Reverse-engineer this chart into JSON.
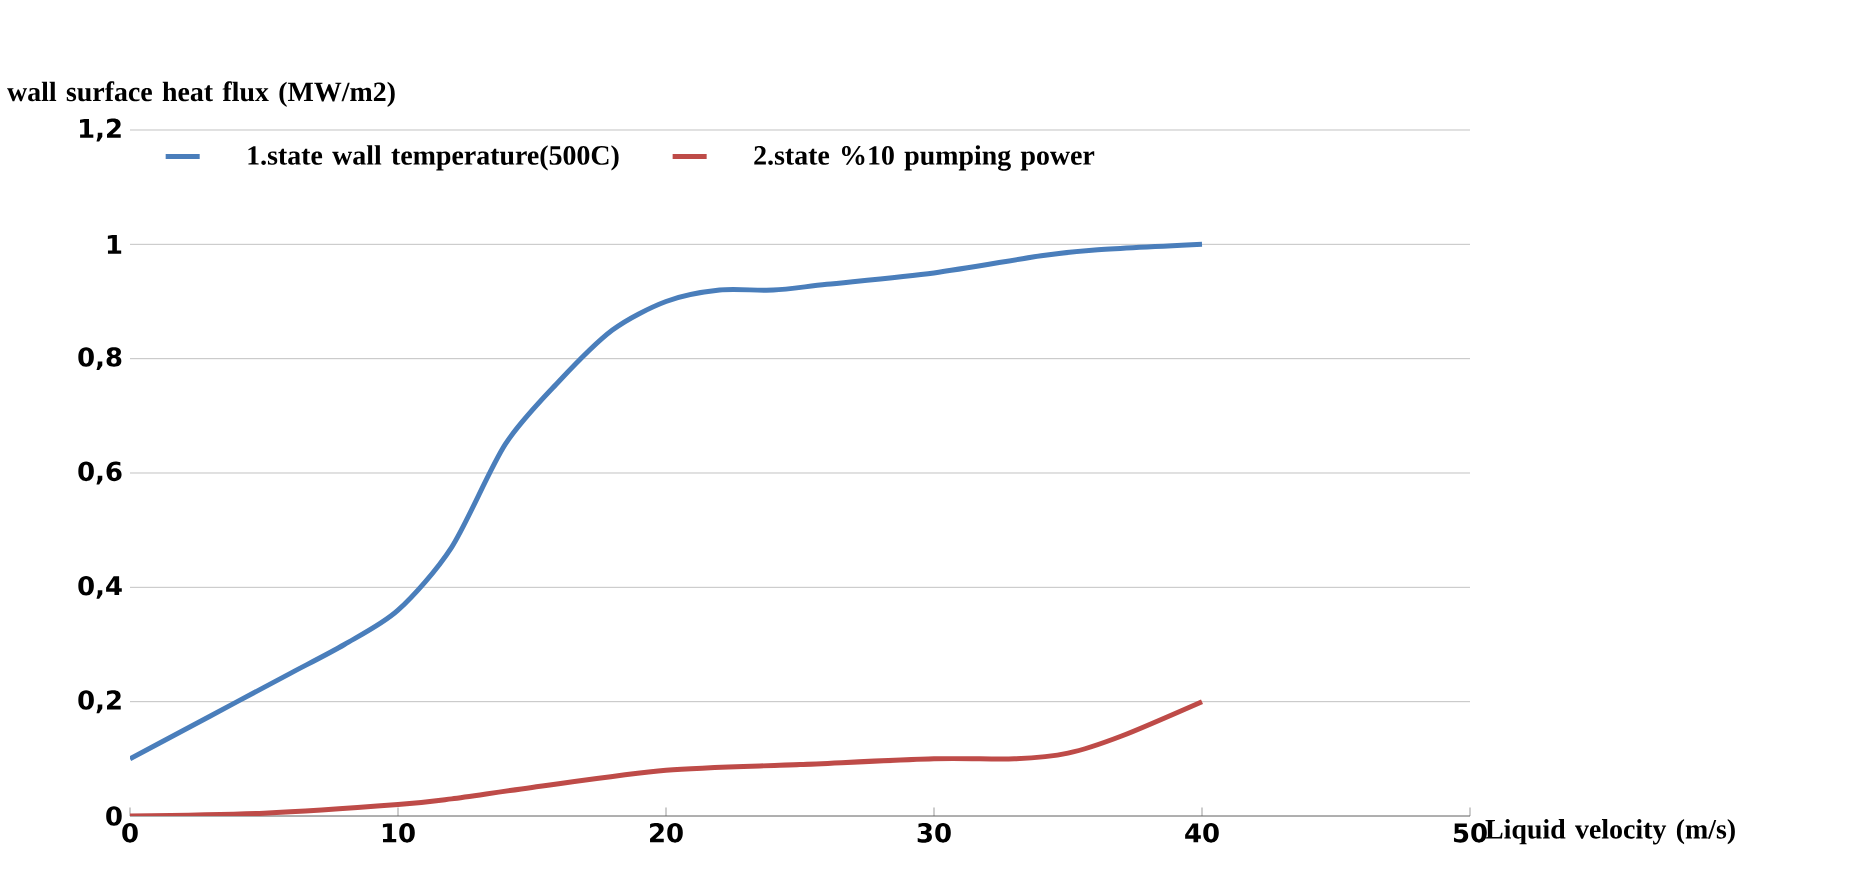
{
  "chart_data": {
    "type": "line",
    "xlabel": "Liquid velocity (m/s)",
    "ylabel": "wall surface heat flux (MW/m2)",
    "xlim": [
      0,
      50
    ],
    "xticks": [
      0,
      10,
      20,
      30,
      40,
      50
    ],
    "ylim": [
      0,
      1.2
    ],
    "yticks": [
      0,
      {
        "value": 0.2,
        "label": "0,2"
      },
      {
        "value": 0.4,
        "label": "0,4"
      },
      {
        "value": 0.6,
        "label": "0,6"
      },
      {
        "value": 0.8,
        "label": "0,8"
      },
      1,
      {
        "value": 1.2,
        "label": "1,2"
      }
    ],
    "grid": "y",
    "legend": "top left",
    "series": [
      {
        "name": "1.state wall temperature(500C)",
        "color": "#4a7ebb",
        "x": [
          0,
          2,
          4,
          6,
          8,
          10,
          12,
          14,
          16,
          18,
          20,
          22,
          24,
          26,
          30,
          34,
          36,
          40
        ],
        "values": [
          0.1,
          0.15,
          0.2,
          0.25,
          0.3,
          0.36,
          0.47,
          0.65,
          0.76,
          0.85,
          0.9,
          0.92,
          0.92,
          0.93,
          0.95,
          0.98,
          0.99,
          1.0
        ]
      },
      {
        "name": "2.state %10 pumping power",
        "color": "#be4b48",
        "x": [
          0,
          5,
          10,
          12,
          15,
          20,
          25,
          30,
          33,
          35,
          37,
          40
        ],
        "values": [
          0,
          0.005,
          0.02,
          0.03,
          0.05,
          0.08,
          0.09,
          0.1,
          0.1,
          0.11,
          0.14,
          0.2
        ]
      }
    ]
  }
}
